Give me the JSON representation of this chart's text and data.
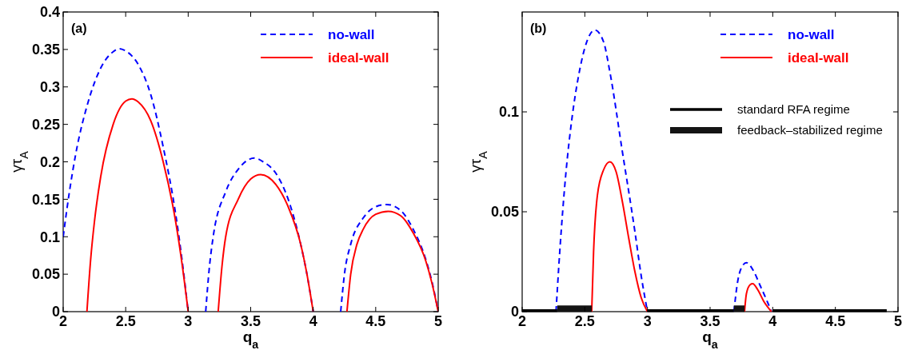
{
  "chart_data": [
    {
      "type": "line",
      "xlabel": "q$_{a}$",
      "ylabel": "γτ$_{A}$",
      "annotations": [
        "(a)"
      ],
      "xlim": [
        2,
        5
      ],
      "ylim": [
        0,
        0.4
      ],
      "xticks": [
        2,
        2.5,
        3,
        3.5,
        4,
        4.5,
        5
      ],
      "yticks": [
        0,
        0.05,
        0.1,
        0.15,
        0.2,
        0.25,
        0.3,
        0.35,
        0.4
      ],
      "grid": false,
      "legend": "top right",
      "marker": "none",
      "series": [
        {
          "name": "no-wall",
          "color": "#0000ff",
          "line_style": "dashed",
          "x": [
            2.0,
            2.05,
            2.1,
            2.2,
            2.3,
            2.4,
            2.45,
            2.5,
            2.6,
            2.7,
            2.8,
            2.9,
            2.95,
            3.0,
            3.07,
            3.14,
            3.17,
            3.2,
            3.3,
            3.4,
            3.53,
            3.6,
            3.7,
            3.8,
            3.9,
            3.95,
            4.0,
            4.1,
            4.22,
            4.25,
            4.3,
            4.4,
            4.5,
            4.59,
            4.7,
            4.8,
            4.9,
            4.95,
            5.0
          ],
          "values": [
            0.1,
            0.16,
            0.21,
            0.28,
            0.325,
            0.347,
            0.351,
            0.348,
            0.33,
            0.29,
            0.22,
            0.13,
            0.07,
            0,
            null,
            0,
            0.06,
            0.1,
            0.16,
            0.19,
            0.205,
            0.2,
            0.185,
            0.15,
            0.09,
            0.05,
            0,
            null,
            0,
            0.05,
            0.09,
            0.125,
            0.14,
            0.143,
            0.135,
            0.11,
            0.07,
            0.04,
            0
          ]
        },
        {
          "name": "ideal-wall",
          "color": "#ff0000",
          "line_style": "solid",
          "x": [
            2.19,
            2.22,
            2.25,
            2.3,
            2.4,
            2.5,
            2.55,
            2.6,
            2.7,
            2.8,
            2.9,
            2.95,
            3.0,
            3.1,
            3.24,
            3.27,
            3.3,
            3.4,
            3.5,
            3.58,
            3.7,
            3.8,
            3.9,
            3.95,
            4.0,
            4.1,
            4.27,
            4.3,
            4.35,
            4.4,
            4.5,
            4.6,
            4.7,
            4.8,
            4.9,
            4.95,
            5.0
          ],
          "values": [
            0,
            0.07,
            0.12,
            0.18,
            0.25,
            0.281,
            0.284,
            0.28,
            0.255,
            0.2,
            0.12,
            0.065,
            0,
            null,
            0,
            0.06,
            0.1,
            0.15,
            0.177,
            0.183,
            0.17,
            0.14,
            0.09,
            0.05,
            0,
            null,
            0,
            0.05,
            0.09,
            0.11,
            0.13,
            0.134,
            0.128,
            0.105,
            0.068,
            0.038,
            0
          ]
        }
      ]
    },
    {
      "type": "line",
      "xlabel": "q$_{a}$",
      "ylabel": "γτ$_{A}$",
      "annotations": [
        "(b)"
      ],
      "xlim": [
        2,
        5
      ],
      "ylim": [
        0,
        0.15
      ],
      "xticks": [
        2,
        2.5,
        3,
        3.5,
        4,
        4.5,
        5
      ],
      "yticks": [
        0,
        0.05,
        0.1
      ],
      "grid": false,
      "legend": "top right",
      "marker": "none",
      "series": [
        {
          "name": "no-wall",
          "color": "#0000ff",
          "line_style": "dashed",
          "x": [
            2.27,
            2.3,
            2.35,
            2.4,
            2.45,
            2.5,
            2.58,
            2.65,
            2.7,
            2.8,
            2.9,
            2.95,
            3.0,
            3.3,
            3.69,
            3.72,
            3.75,
            3.79,
            3.85,
            3.9,
            3.95,
            3.99
          ],
          "values": [
            0,
            0.03,
            0.07,
            0.098,
            0.118,
            0.132,
            0.141,
            0.135,
            0.12,
            0.08,
            0.04,
            0.018,
            0,
            null,
            0,
            0.015,
            0.022,
            0.0245,
            0.02,
            0.013,
            0.006,
            0
          ]
        },
        {
          "name": "ideal-wall",
          "color": "#ff0000",
          "line_style": "solid",
          "x": [
            2.555,
            2.57,
            2.6,
            2.65,
            2.7,
            2.75,
            2.8,
            2.85,
            2.9,
            2.95,
            3.0,
            3.4,
            3.775,
            3.79,
            3.82,
            3.84,
            3.88,
            3.93,
            3.99
          ],
          "values": [
            0,
            0.03,
            0.058,
            0.071,
            0.075,
            0.07,
            0.055,
            0.037,
            0.02,
            0.007,
            0,
            null,
            0,
            0.009,
            0.0135,
            0.014,
            0.011,
            0.005,
            0
          ]
        },
        {
          "name": "standard RFA regime",
          "color": "#000000",
          "line_style": "solid",
          "x": [
            2,
            2.28,
            2.6,
            3.0,
            3.69,
            3.8,
            4.0,
            4.91
          ],
          "values": [
            0.0005,
            0.0005,
            null,
            0.0005,
            0.0005,
            null,
            0.0005,
            0.0005
          ]
        },
        {
          "name": "feedback–stabilized regime",
          "color": "#141414",
          "line_style": "solid",
          "x": [
            2.28,
            2.555,
            3.2,
            3.69,
            3.775
          ],
          "values": [
            0.0015,
            0.0015,
            null,
            0.0015,
            0.0015
          ]
        }
      ]
    }
  ]
}
